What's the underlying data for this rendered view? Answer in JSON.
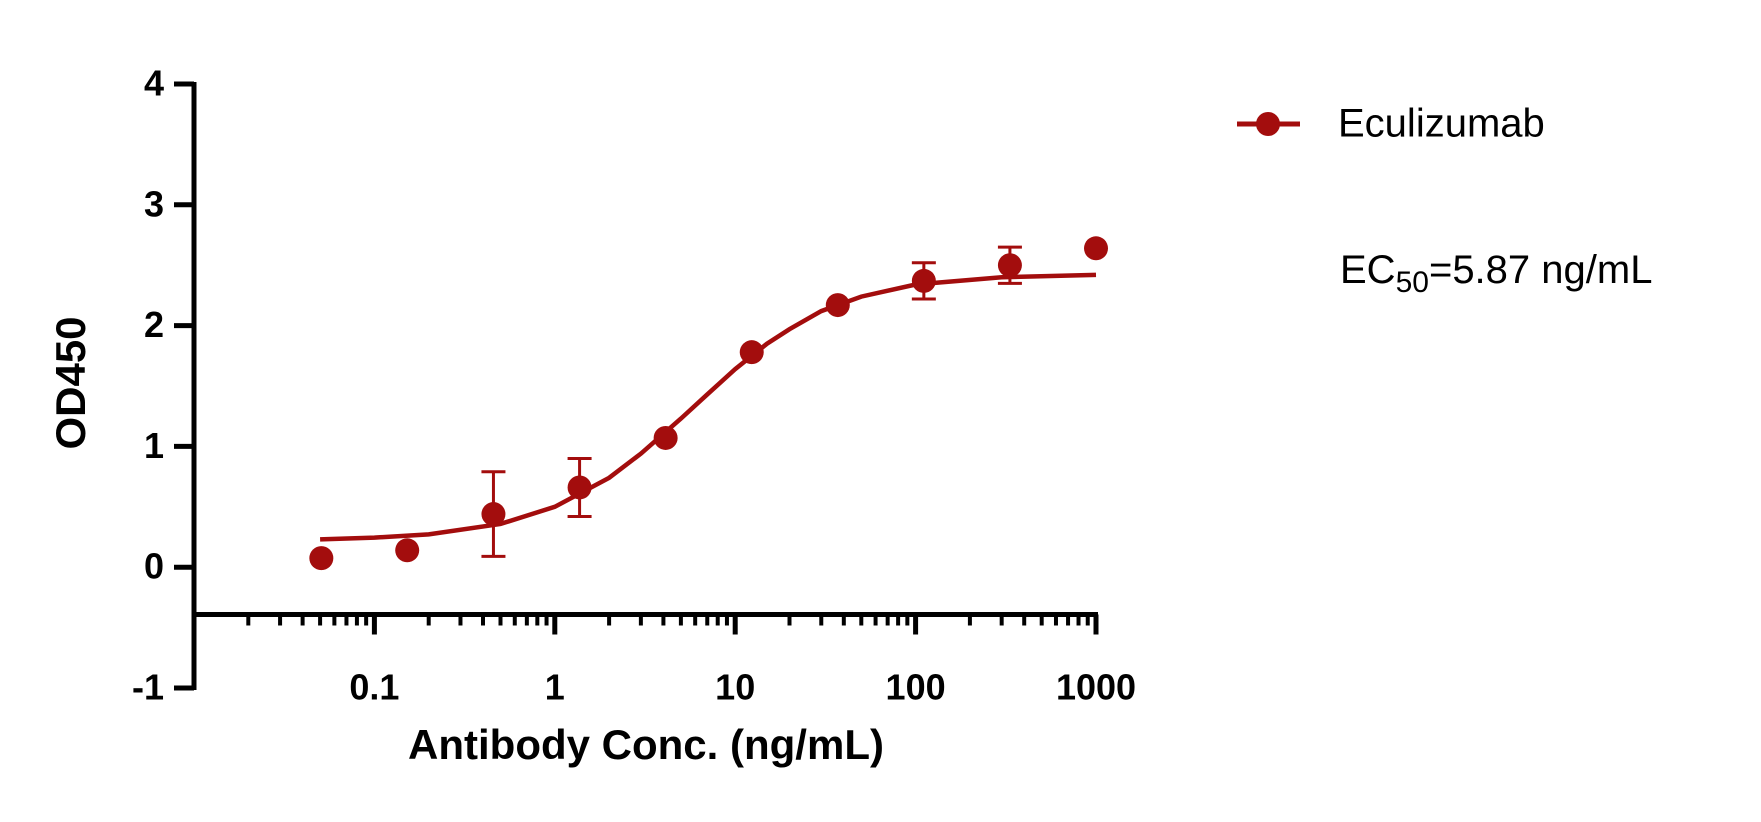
{
  "chart_data": {
    "type": "scatter",
    "x_label": "Antibody Conc. (ng/mL)",
    "y_label": "OD450",
    "xscale": "log",
    "xlim": [
      0.01,
      1000
    ],
    "xticks": [
      0.1,
      1,
      10,
      100,
      1000
    ],
    "ylim": [
      -1,
      4
    ],
    "yticks": [
      -1,
      0,
      1,
      2,
      3,
      4
    ],
    "legend": "top-right",
    "series": [
      {
        "name": "Eculizumab",
        "color": "#a30d0d",
        "x": [
          0.0508,
          0.152,
          0.457,
          1.372,
          4.115,
          12.35,
          37.04,
          111.1,
          333.3,
          1000
        ],
        "values": [
          0.075,
          0.14,
          0.44,
          0.66,
          1.07,
          1.78,
          2.17,
          2.37,
          2.5,
          2.64
        ],
        "errors": [
          0,
          0,
          0.35,
          0.24,
          0,
          0,
          0,
          0.15,
          0.15,
          0
        ]
      }
    ],
    "fit": {
      "color": "#a30d0d",
      "x": [
        0.05,
        0.1,
        0.2,
        0.5,
        1,
        2,
        3,
        5,
        7,
        10,
        15,
        20,
        30,
        50,
        100,
        300,
        1000
      ],
      "values": [
        0.23,
        0.245,
        0.272,
        0.358,
        0.5,
        0.74,
        0.94,
        1.23,
        1.43,
        1.64,
        1.85,
        1.97,
        2.12,
        2.24,
        2.34,
        2.4,
        2.42
      ]
    },
    "annotation": {
      "text": "EC",
      "sub": "50",
      "rest": "=5.87 ng/mL"
    }
  }
}
